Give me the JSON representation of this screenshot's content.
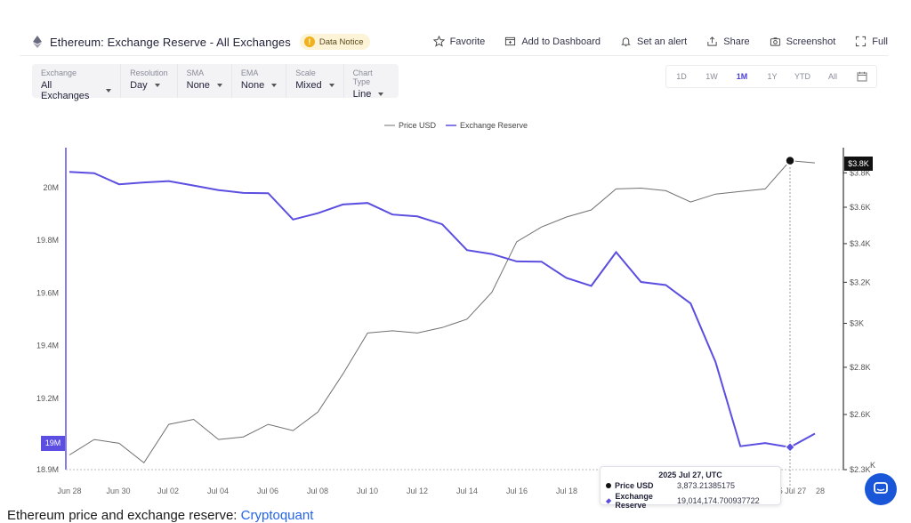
{
  "header": {
    "title": "Ethereum: Exchange Reserve - All Exchanges",
    "notice_label": "Data Notice",
    "actions": [
      {
        "label": "Favorite",
        "icon": "star-icon"
      },
      {
        "label": "Add to Dashboard",
        "icon": "dashboard-add-icon"
      },
      {
        "label": "Set an alert",
        "icon": "bell-icon"
      },
      {
        "label": "Share",
        "icon": "share-icon"
      },
      {
        "label": "Screenshot",
        "icon": "camera-icon"
      },
      {
        "label": "Full",
        "icon": "fullscreen-icon"
      }
    ]
  },
  "controls": [
    {
      "label": "Exchange",
      "value": "All Exchanges"
    },
    {
      "label": "Resolution",
      "value": "Day"
    },
    {
      "label": "SMA",
      "value": "None"
    },
    {
      "label": "EMA",
      "value": "None"
    },
    {
      "label": "Scale",
      "value": "Mixed"
    },
    {
      "label": "Chart Type",
      "value": "Line"
    }
  ],
  "ranges": [
    "1D",
    "1W",
    "1M",
    "1Y",
    "YTD",
    "All"
  ],
  "active_range": "1M",
  "tooltip": {
    "date": "2025 Jul 27, UTC",
    "price_label": "Price USD",
    "price_value": "3,873.21385175",
    "reserve_label": "Exchange Reserve",
    "reserve_value": "19,014,174.700937722"
  },
  "caption": {
    "text": "Ethereum price and exchange reserve: ",
    "link": "Cryptoquant"
  },
  "chart_data": {
    "type": "line",
    "legend_position": "top-center",
    "x": [
      "Jun 28",
      "Jun 29",
      "Jun 30",
      "Jul 01",
      "Jul 02",
      "Jul 03",
      "Jul 04",
      "Jul 05",
      "Jul 06",
      "Jul 07",
      "Jul 08",
      "Jul 09",
      "Jul 10",
      "Jul 11",
      "Jul 12",
      "Jul 13",
      "Jul 14",
      "Jul 15",
      "Jul 16",
      "Jul 17",
      "Jul 18",
      "Jul 19",
      "Jul 20",
      "Jul 21",
      "Jul 22",
      "Jul 23",
      "Jul 24",
      "Jul 25",
      "Jul 26",
      "Jul 27",
      "Jul 28"
    ],
    "x_ticks": [
      "Jun 28",
      "Jun 30",
      "Jul 02",
      "Jul 04",
      "Jul 06",
      "Jul 08",
      "Jul 10",
      "Jul 12",
      "Jul 14",
      "Jul 16",
      "Jul 18",
      "Jul 20",
      "Jul 22",
      "Jul 24",
      "25 Jul 27",
      "28"
    ],
    "series": [
      {
        "name": "Price USD",
        "axis": "right",
        "color": "#707070",
        "values": [
          2440,
          2500,
          2485,
          2410,
          2560,
          2580,
          2500,
          2510,
          2560,
          2535,
          2610,
          2770,
          2955,
          2965,
          2955,
          2980,
          3020,
          3150,
          3410,
          3490,
          3545,
          3585,
          3705,
          3710,
          3695,
          3630,
          3675,
          3690,
          3705,
          3873,
          3860
        ]
      },
      {
        "name": "Exchange Reserve",
        "axis": "left",
        "color": "#5b4ee0",
        "values": [
          20060000,
          20055000,
          20013000,
          20020000,
          20025000,
          20008000,
          19991000,
          19980000,
          19979000,
          19879000,
          19903000,
          19936000,
          19942000,
          19898000,
          19891000,
          19861000,
          19763000,
          19748000,
          19720000,
          19719000,
          19657000,
          19627000,
          19755000,
          19642000,
          19630000,
          19560000,
          19338000,
          19018000,
          19030000,
          19014175,
          19066000
        ]
      }
    ],
    "y_left": {
      "ticks": [
        "18.9M",
        "19.2M",
        "19.4M",
        "19.6M",
        "19.8M",
        "20M"
      ],
      "ylim": [
        18900000,
        20100000
      ],
      "highlight": "19M"
    },
    "y_right": {
      "ticks": [
        "$2.3K",
        "$2.6K",
        "$2.8K",
        "$3K",
        "$3.2K",
        "$3.4K",
        "$3.6K",
        "$3.8K"
      ],
      "highlight": "$3.8K",
      "partial": "K"
    },
    "hover_index": 29
  }
}
